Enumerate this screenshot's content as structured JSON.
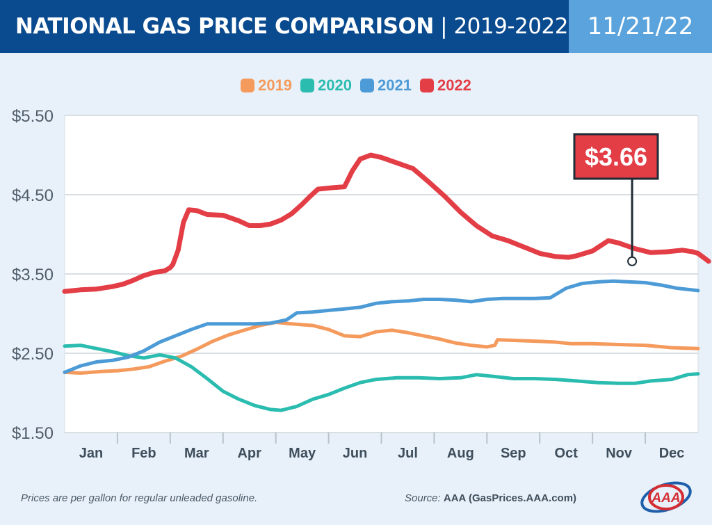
{
  "header": {
    "title_main": "NATIONAL GAS PRICE COMPARISON",
    "title_sep": " | ",
    "title_years": "2019-2022",
    "date": "11/21/22"
  },
  "colors": {
    "2019": "#f59a5d",
    "2020": "#2bbcb0",
    "2021": "#4c9bd6",
    "2022": "#e33d46",
    "header_bg": "#0a4b8f",
    "date_bg": "#5aa3dc"
  },
  "footer": {
    "note": "Prices are per gallon for regular unleaded gasoline.",
    "source_label": "Source:",
    "source_value": "AAA (GasPrices.AAA.com)"
  },
  "logo": {
    "text": "AAA",
    "icon": "aaa-logo"
  },
  "chart_data": {
    "type": "line",
    "title": "",
    "xlabel": "",
    "ylabel": "",
    "x_categories": [
      "Jan",
      "Feb",
      "Mar",
      "Apr",
      "May",
      "Jun",
      "Jul",
      "Aug",
      "Sep",
      "Oct",
      "Nov",
      "Dec"
    ],
    "y_ticks": [
      "$1.50",
      "$2.50",
      "$3.50",
      "$4.50",
      "$5.50"
    ],
    "y_tick_values": [
      1.5,
      2.5,
      3.5,
      4.5,
      5.5
    ],
    "ylim": [
      1.5,
      5.5
    ],
    "xlim": [
      0,
      12
    ],
    "grid": true,
    "legend_position": "top-center",
    "callout": {
      "label": "$3.66",
      "series": "2022",
      "x": 10.75,
      "y": 3.66
    },
    "series": [
      {
        "name": "2019",
        "points": [
          [
            0,
            2.26
          ],
          [
            0.3,
            2.25
          ],
          [
            0.7,
            2.27
          ],
          [
            1.0,
            2.28
          ],
          [
            1.3,
            2.3
          ],
          [
            1.6,
            2.33
          ],
          [
            1.9,
            2.4
          ],
          [
            2.2,
            2.46
          ],
          [
            2.5,
            2.55
          ],
          [
            2.8,
            2.65
          ],
          [
            3.1,
            2.73
          ],
          [
            3.4,
            2.79
          ],
          [
            3.7,
            2.85
          ],
          [
            4.0,
            2.89
          ],
          [
            4.3,
            2.87
          ],
          [
            4.7,
            2.85
          ],
          [
            5.0,
            2.8
          ],
          [
            5.3,
            2.72
          ],
          [
            5.6,
            2.71
          ],
          [
            5.9,
            2.77
          ],
          [
            6.2,
            2.79
          ],
          [
            6.5,
            2.76
          ],
          [
            6.8,
            2.72
          ],
          [
            7.1,
            2.68
          ],
          [
            7.4,
            2.63
          ],
          [
            7.7,
            2.6
          ],
          [
            8.0,
            2.58
          ],
          [
            8.15,
            2.6
          ],
          [
            8.2,
            2.67
          ],
          [
            8.6,
            2.66
          ],
          [
            9.0,
            2.65
          ],
          [
            9.3,
            2.64
          ],
          [
            9.6,
            2.62
          ],
          [
            10.0,
            2.62
          ],
          [
            10.5,
            2.61
          ],
          [
            11.0,
            2.6
          ],
          [
            11.5,
            2.57
          ],
          [
            12,
            2.56
          ]
        ]
      },
      {
        "name": "2020",
        "points": [
          [
            0,
            2.59
          ],
          [
            0.3,
            2.6
          ],
          [
            0.6,
            2.56
          ],
          [
            0.9,
            2.52
          ],
          [
            1.2,
            2.47
          ],
          [
            1.5,
            2.44
          ],
          [
            1.8,
            2.48
          ],
          [
            2.1,
            2.44
          ],
          [
            2.4,
            2.33
          ],
          [
            2.7,
            2.18
          ],
          [
            3.0,
            2.02
          ],
          [
            3.3,
            1.92
          ],
          [
            3.6,
            1.84
          ],
          [
            3.9,
            1.79
          ],
          [
            4.1,
            1.78
          ],
          [
            4.4,
            1.83
          ],
          [
            4.7,
            1.92
          ],
          [
            5.0,
            1.98
          ],
          [
            5.3,
            2.06
          ],
          [
            5.6,
            2.13
          ],
          [
            5.9,
            2.17
          ],
          [
            6.3,
            2.19
          ],
          [
            6.7,
            2.19
          ],
          [
            7.1,
            2.18
          ],
          [
            7.5,
            2.19
          ],
          [
            7.8,
            2.23
          ],
          [
            8.1,
            2.21
          ],
          [
            8.5,
            2.18
          ],
          [
            8.9,
            2.18
          ],
          [
            9.3,
            2.17
          ],
          [
            9.7,
            2.15
          ],
          [
            10.1,
            2.13
          ],
          [
            10.5,
            2.12
          ],
          [
            10.8,
            2.12
          ],
          [
            11.1,
            2.15
          ],
          [
            11.5,
            2.17
          ],
          [
            11.8,
            2.23
          ],
          [
            12,
            2.24
          ]
        ]
      },
      {
        "name": "2021",
        "points": [
          [
            0,
            2.26
          ],
          [
            0.3,
            2.34
          ],
          [
            0.6,
            2.39
          ],
          [
            0.9,
            2.41
          ],
          [
            1.2,
            2.45
          ],
          [
            1.5,
            2.53
          ],
          [
            1.8,
            2.64
          ],
          [
            2.1,
            2.72
          ],
          [
            2.4,
            2.8
          ],
          [
            2.7,
            2.87
          ],
          [
            3.0,
            2.87
          ],
          [
            3.3,
            2.87
          ],
          [
            3.6,
            2.87
          ],
          [
            3.9,
            2.88
          ],
          [
            4.2,
            2.92
          ],
          [
            4.4,
            3.01
          ],
          [
            4.7,
            3.02
          ],
          [
            5.0,
            3.04
          ],
          [
            5.3,
            3.06
          ],
          [
            5.6,
            3.08
          ],
          [
            5.9,
            3.13
          ],
          [
            6.2,
            3.15
          ],
          [
            6.5,
            3.16
          ],
          [
            6.8,
            3.18
          ],
          [
            7.1,
            3.18
          ],
          [
            7.4,
            3.17
          ],
          [
            7.7,
            3.15
          ],
          [
            8.0,
            3.18
          ],
          [
            8.3,
            3.19
          ],
          [
            8.6,
            3.19
          ],
          [
            8.9,
            3.19
          ],
          [
            9.2,
            3.2
          ],
          [
            9.5,
            3.32
          ],
          [
            9.8,
            3.38
          ],
          [
            10.1,
            3.4
          ],
          [
            10.4,
            3.41
          ],
          [
            10.7,
            3.4
          ],
          [
            11.0,
            3.39
          ],
          [
            11.3,
            3.36
          ],
          [
            11.6,
            3.32
          ],
          [
            12,
            3.29
          ]
        ]
      },
      {
        "name": "2022",
        "points": [
          [
            0,
            3.28
          ],
          [
            0.3,
            3.3
          ],
          [
            0.6,
            3.31
          ],
          [
            0.9,
            3.34
          ],
          [
            1.1,
            3.37
          ],
          [
            1.3,
            3.42
          ],
          [
            1.5,
            3.48
          ],
          [
            1.7,
            3.52
          ],
          [
            1.9,
            3.54
          ],
          [
            2.0,
            3.58
          ],
          [
            2.05,
            3.62
          ],
          [
            2.15,
            3.8
          ],
          [
            2.25,
            4.15
          ],
          [
            2.35,
            4.31
          ],
          [
            2.5,
            4.3
          ],
          [
            2.7,
            4.25
          ],
          [
            3.0,
            4.24
          ],
          [
            3.3,
            4.17
          ],
          [
            3.5,
            4.11
          ],
          [
            3.7,
            4.11
          ],
          [
            3.9,
            4.13
          ],
          [
            4.1,
            4.18
          ],
          [
            4.3,
            4.26
          ],
          [
            4.5,
            4.38
          ],
          [
            4.65,
            4.48
          ],
          [
            4.8,
            4.57
          ],
          [
            5.1,
            4.59
          ],
          [
            5.3,
            4.6
          ],
          [
            5.45,
            4.8
          ],
          [
            5.6,
            4.95
          ],
          [
            5.8,
            5.0
          ],
          [
            6.0,
            4.97
          ],
          [
            6.3,
            4.9
          ],
          [
            6.6,
            4.83
          ],
          [
            6.9,
            4.66
          ],
          [
            7.2,
            4.48
          ],
          [
            7.5,
            4.28
          ],
          [
            7.8,
            4.11
          ],
          [
            8.1,
            3.98
          ],
          [
            8.4,
            3.92
          ],
          [
            8.7,
            3.84
          ],
          [
            9.0,
            3.76
          ],
          [
            9.3,
            3.72
          ],
          [
            9.55,
            3.71
          ],
          [
            9.7,
            3.73
          ],
          [
            10.0,
            3.79
          ],
          [
            10.3,
            3.92
          ],
          [
            10.5,
            3.89
          ],
          [
            10.8,
            3.82
          ],
          [
            11.1,
            3.77
          ],
          [
            11.4,
            3.78
          ],
          [
            11.7,
            3.8
          ],
          [
            11.9,
            3.78
          ],
          [
            12.0,
            3.76
          ],
          [
            12.2,
            3.66
          ]
        ]
      }
    ]
  }
}
